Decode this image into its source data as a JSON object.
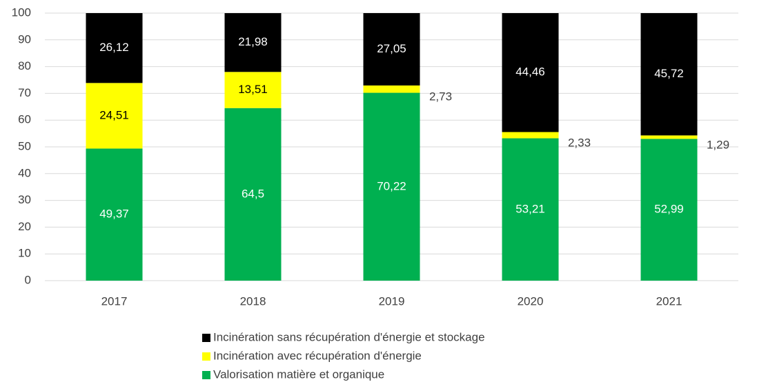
{
  "chart_data": {
    "type": "stacked_bar",
    "categories": [
      "2017",
      "2018",
      "2019",
      "2020",
      "2021"
    ],
    "series": [
      {
        "name": "Valorisation matière et organique",
        "color": "#00b050",
        "label_color": "#ffffff",
        "values": [
          49.37,
          64.5,
          70.22,
          53.21,
          52.99
        ],
        "value_labels": [
          "49,37",
          "64,5",
          "70,22",
          "53,21",
          "52,99"
        ]
      },
      {
        "name": "Incinération avec récupération d'énergie",
        "color": "#ffff00",
        "label_color": "#000000",
        "values": [
          24.51,
          13.51,
          2.73,
          2.33,
          1.29
        ],
        "value_labels": [
          "24,51",
          "13,51",
          "2,73",
          "2,33",
          "1,29"
        ]
      },
      {
        "name": "Incinération sans récupération d'énergie et stockage",
        "color": "#000000",
        "label_color": "#ffffff",
        "values": [
          26.12,
          21.98,
          27.05,
          44.46,
          45.72
        ],
        "value_labels": [
          "26,12",
          "21,98",
          "27,05",
          "44,46",
          "45,72"
        ]
      }
    ],
    "ylim": [
      0,
      100
    ],
    "yticks": [
      0,
      10,
      20,
      30,
      40,
      50,
      60,
      70,
      80,
      90,
      100
    ],
    "grid": true,
    "legend": "bottom"
  }
}
